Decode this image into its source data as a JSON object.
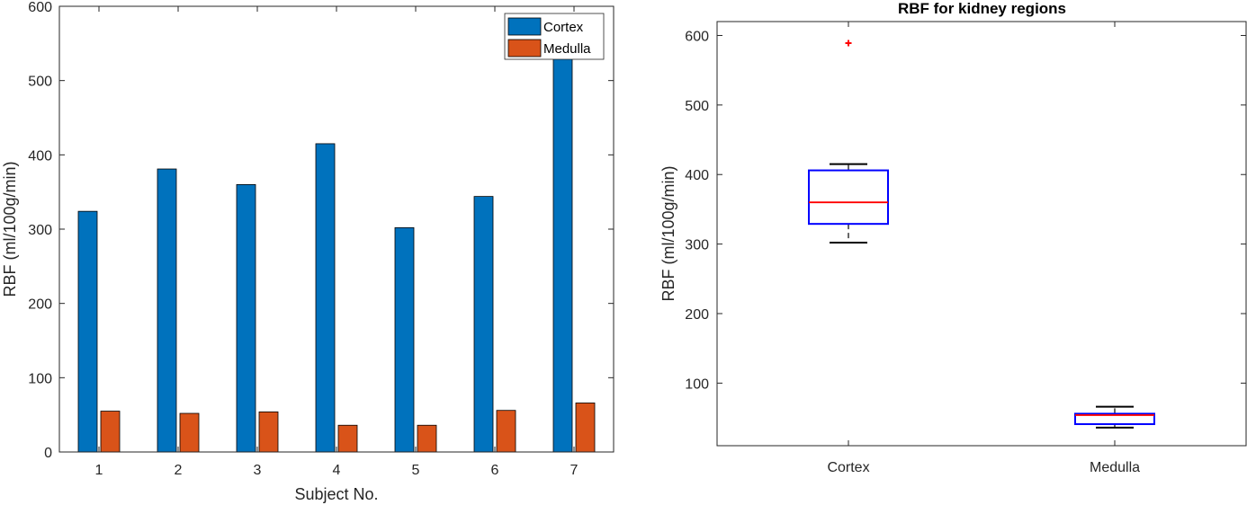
{
  "colors": {
    "cortex": "#0072BD",
    "medulla": "#D95319",
    "box_outline": "#0000FF",
    "median": "#FF0000",
    "outlier": "#FF0000",
    "whisker": "#000000",
    "axis": "#262626"
  },
  "chart_data": [
    {
      "type": "bar",
      "title": "",
      "xlabel": "Subject No.",
      "ylabel": "RBF (ml/100g/min)",
      "categories": [
        "1",
        "2",
        "3",
        "4",
        "5",
        "6",
        "7"
      ],
      "ylim": [
        0,
        600
      ],
      "yticks": [
        "0",
        "100",
        "200",
        "300",
        "400",
        "500",
        "600"
      ],
      "legend_position": "top-right",
      "series": [
        {
          "name": "Cortex",
          "values": [
            324,
            381,
            360,
            415,
            302,
            344,
            589
          ]
        },
        {
          "name": "Medulla",
          "values": [
            55,
            52,
            54,
            36,
            36,
            56,
            66
          ]
        }
      ]
    },
    {
      "type": "box",
      "title": "RBF for kidney regions",
      "xlabel": "",
      "ylabel": "RBF (ml/100g/min)",
      "categories": [
        "Cortex",
        "Medulla"
      ],
      "ylim": [
        10,
        620
      ],
      "yticks": [
        "100",
        "200",
        "300",
        "400",
        "500",
        "600"
      ],
      "boxes": [
        {
          "name": "Cortex",
          "whisker_low": 302,
          "q1": 329,
          "median": 360,
          "q3": 406,
          "whisker_high": 415,
          "outliers": [
            589
          ]
        },
        {
          "name": "Medulla",
          "whisker_low": 36,
          "q1": 41,
          "median": 54,
          "q3": 56,
          "whisker_high": 66,
          "outliers": []
        }
      ]
    }
  ]
}
